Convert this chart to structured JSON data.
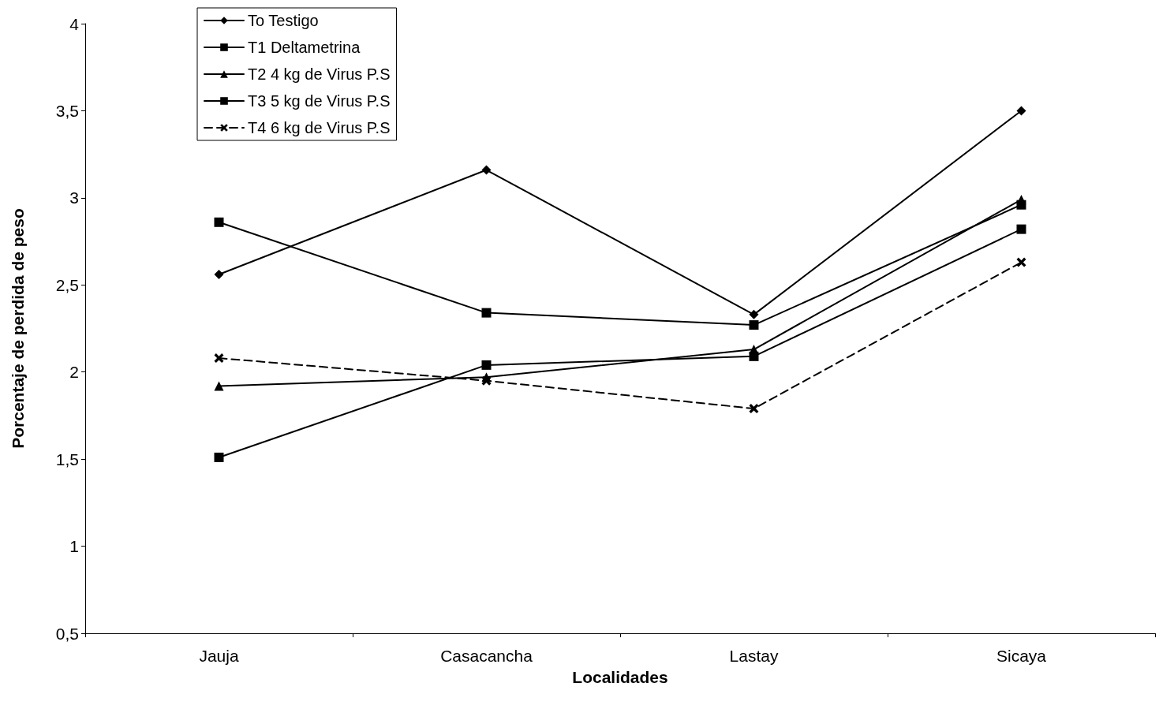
{
  "chart_data": {
    "type": "line",
    "xlabel": "Localidades",
    "ylabel": "Porcentaje de perdida de peso",
    "categories": [
      "Jauja",
      "Casacancha",
      "Lastay",
      "Sicaya"
    ],
    "series": [
      {
        "name": "To Testigo",
        "color": "#000000",
        "marker": "diamond",
        "line_style": "solid",
        "values": [
          2.56,
          3.16,
          2.33,
          3.5
        ]
      },
      {
        "name": "T1 Deltametrina",
        "color": "#000000",
        "marker": "square",
        "line_style": "solid",
        "values": [
          2.86,
          2.34,
          2.27,
          2.96
        ]
      },
      {
        "name": "T2 4 kg de Virus P.S",
        "color": "#000000",
        "marker": "triangle",
        "line_style": "solid",
        "values": [
          1.92,
          1.97,
          2.13,
          2.99
        ]
      },
      {
        "name": "T3 5 kg de Virus P.S",
        "color": "#000000",
        "marker": "square",
        "line_style": "solid",
        "values": [
          1.51,
          2.04,
          2.09,
          2.82
        ]
      },
      {
        "name": "T4 6 kg de Virus P.S",
        "color": "#000000",
        "marker": "cross",
        "line_style": "dashed",
        "values": [
          2.08,
          1.95,
          1.79,
          2.63
        ]
      }
    ],
    "ylim": [
      0.5,
      4
    ],
    "yticks": [
      {
        "value": 0.5,
        "label": "0,5"
      },
      1,
      {
        "value": 1.5,
        "label": "1,5"
      },
      2,
      {
        "value": 2.5,
        "label": "2,5"
      },
      3,
      {
        "value": 3.5,
        "label": "3,5"
      },
      4
    ],
    "grid": false,
    "legend": "top left"
  }
}
